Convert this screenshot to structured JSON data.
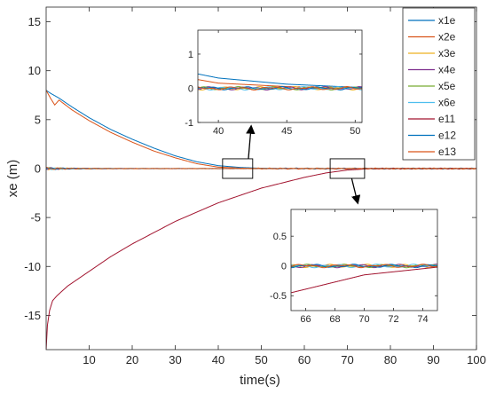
{
  "chart_data": {
    "type": "line",
    "title": "",
    "xlabel": "time(s)",
    "ylabel": "xe (m)",
    "xlim": [
      0,
      100
    ],
    "ylim": [
      -18.5,
      16.5
    ],
    "xticks": [
      10,
      20,
      30,
      40,
      50,
      60,
      70,
      80,
      90,
      100
    ],
    "yticks": [
      -15,
      -10,
      -5,
      0,
      5,
      10,
      15
    ],
    "grid": false,
    "legend_position": "top-right",
    "series": [
      {
        "name": "x1e",
        "color": "#0072BD",
        "points": [
          [
            0,
            8
          ],
          [
            1,
            7.7
          ],
          [
            3,
            7.2
          ],
          [
            6,
            6.3
          ],
          [
            10,
            5.2
          ],
          [
            15,
            4.0
          ],
          [
            20,
            3.0
          ],
          [
            25,
            2.1
          ],
          [
            30,
            1.3
          ],
          [
            35,
            0.7
          ],
          [
            40,
            0.3
          ],
          [
            45,
            0.12
          ],
          [
            50,
            0.03
          ],
          [
            60,
            0
          ],
          [
            100,
            0
          ]
        ]
      },
      {
        "name": "x2e",
        "color": "#D95319",
        "points": [
          [
            0,
            8
          ],
          [
            1,
            7.2
          ],
          [
            2,
            6.5
          ],
          [
            3,
            7.0
          ],
          [
            6,
            6.0
          ],
          [
            10,
            4.9
          ],
          [
            15,
            3.7
          ],
          [
            20,
            2.7
          ],
          [
            25,
            1.8
          ],
          [
            30,
            1.1
          ],
          [
            35,
            0.5
          ],
          [
            40,
            0.15
          ],
          [
            45,
            0.05
          ],
          [
            50,
            0.0
          ],
          [
            60,
            0
          ],
          [
            100,
            0
          ]
        ]
      },
      {
        "name": "x3e",
        "color": "#EDB120",
        "points": [
          [
            0,
            0
          ],
          [
            100,
            0
          ]
        ]
      },
      {
        "name": "x4e",
        "color": "#7E2F8E",
        "points": [
          [
            0,
            0
          ],
          [
            100,
            0
          ]
        ]
      },
      {
        "name": "x5e",
        "color": "#77AC30",
        "points": [
          [
            0,
            0
          ],
          [
            100,
            0
          ]
        ]
      },
      {
        "name": "x6e",
        "color": "#4DBEEE",
        "points": [
          [
            0,
            0
          ],
          [
            100,
            0
          ]
        ]
      },
      {
        "name": "e11",
        "color": "#A2142F",
        "points": [
          [
            0,
            -18.5
          ],
          [
            0.3,
            -16
          ],
          [
            0.8,
            -14.5
          ],
          [
            1.5,
            -13.5
          ],
          [
            2.5,
            -13
          ],
          [
            5,
            -12
          ],
          [
            10,
            -10.5
          ],
          [
            15,
            -9.0
          ],
          [
            20,
            -7.7
          ],
          [
            30,
            -5.4
          ],
          [
            40,
            -3.5
          ],
          [
            50,
            -2.0
          ],
          [
            60,
            -0.9
          ],
          [
            65,
            -0.45
          ],
          [
            70,
            -0.15
          ],
          [
            75,
            -0.02
          ],
          [
            80,
            0
          ],
          [
            100,
            0
          ]
        ]
      },
      {
        "name": "e12",
        "color": "#0072BD",
        "points": [
          [
            0,
            0
          ],
          [
            100,
            0
          ]
        ]
      },
      {
        "name": "e13",
        "color": "#D95319",
        "points": [
          [
            0,
            0
          ],
          [
            100,
            0
          ]
        ]
      }
    ],
    "insets": [
      {
        "xlim": [
          38.5,
          50.5
        ],
        "ylim": [
          -1,
          1.7
        ],
        "xticks": [
          40,
          45,
          50
        ],
        "yticks": [
          -1,
          0,
          1
        ]
      },
      {
        "xlim": [
          65,
          75
        ],
        "ylim": [
          -0.75,
          0.95
        ],
        "xticks": [
          66,
          68,
          70,
          72,
          74
        ],
        "yticks": [
          -0.5,
          0,
          0.5
        ]
      }
    ]
  }
}
